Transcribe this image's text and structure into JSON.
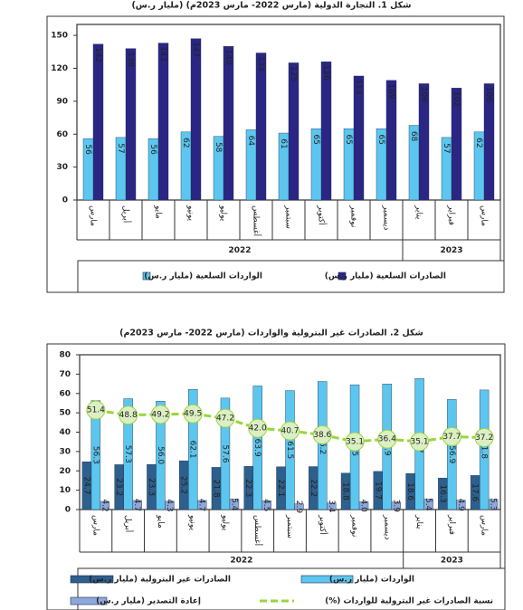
{
  "chart_data": [
    {
      "type": "bar",
      "title": "شكل 1. التجارة الدولية (مارس 2022- مارس 2023م) (مليار ر.س)",
      "categories": [
        "مارس",
        "أبريل",
        "مايو",
        "يونيو",
        "يوليو",
        "أغسطس",
        "سبتمبر",
        "أكتوبر",
        "نوفمبر",
        "ديسمبر",
        "يناير",
        "فبراير",
        "مارس"
      ],
      "years": [
        "2022",
        "2022",
        "2022",
        "2022",
        "2022",
        "2022",
        "2022",
        "2022",
        "2022",
        "2022",
        "2023",
        "2023",
        "2023"
      ],
      "series": [
        {
          "name": "الصادرات السلعية (مليار ر.س)",
          "color": "#2b2684",
          "values": [
            142,
            138,
            143,
            147,
            140,
            134,
            125,
            126,
            113,
            109,
            106,
            102,
            106
          ]
        },
        {
          "name": "الواردات السلعية (مليار ر.س)",
          "color": "#5cc6ee",
          "values": [
            56,
            57,
            56,
            62,
            58,
            64,
            61,
            65,
            65,
            65,
            68,
            57,
            62
          ]
        }
      ],
      "ylim": [
        0,
        160
      ],
      "yticks": [
        0,
        30,
        60,
        90,
        120,
        150
      ]
    },
    {
      "type": "bar",
      "title": "شكل 2. الصادرات غير البترولية والواردات (مارس 2022- مارس 2023م)",
      "categories": [
        "مارس",
        "أبريل",
        "مايو",
        "يونيو",
        "يوليو",
        "أغسطس",
        "سبتمبر",
        "أكتوبر",
        "نوفمبر",
        "ديسمبر",
        "يناير",
        "فبراير",
        "مارس"
      ],
      "years": [
        "2022",
        "2022",
        "2022",
        "2022",
        "2022",
        "2022",
        "2022",
        "2022",
        "2022",
        "2022",
        "2023",
        "2023",
        "2023"
      ],
      "series": [
        {
          "name": "الواردات (مليار ر.س)",
          "color": "#5cc6ee",
          "values": [
            56.3,
            57.3,
            56.0,
            62.1,
            57.6,
            63.9,
            61.5,
            66.2,
            64.5,
            64.9,
            67.7,
            56.9,
            61.8
          ],
          "value_labels": [
            "56.3",
            "57.3",
            "56.0",
            "62.1",
            "57.6",
            "63.9",
            "61.5",
            "66.2",
            "64.5",
            "64.9",
            "67.7",
            "56.9",
            "61.8"
          ]
        },
        {
          "name": "الصادرات غير البترولية (مليار ر.س)",
          "color": "#2f5f8c",
          "values": [
            24.7,
            23.2,
            23.3,
            25.2,
            21.8,
            22.3,
            22.1,
            22.2,
            18.8,
            19.7,
            18.6,
            16.3,
            17.6
          ]
        },
        {
          "name": "نسبة الصادرات غير البترولية للواردات (%)",
          "type": "line",
          "color": "#9ad53b",
          "values": [
            51.4,
            48.8,
            49.2,
            49.5,
            47.2,
            42.0,
            40.7,
            38.6,
            35.1,
            36.4,
            35.1,
            37.7,
            37.2
          ],
          "value_labels": [
            "51.4",
            "48.8",
            "49.2",
            "49.5",
            "47.2",
            "42.0",
            "40.7",
            "38.6",
            "35.1",
            "36.4",
            "35.1",
            "37.7",
            "37.2"
          ]
        },
        {
          "name": "إعادة التصدير (مليار ر.س)",
          "color": "#8ea8dc",
          "values": [
            4.2,
            4.7,
            4.3,
            4.7,
            5.4,
            4.5,
            2.9,
            3.4,
            4.0,
            3.9,
            5.4,
            4.9,
            5.3
          ],
          "value_labels": [
            "4.2",
            "4.7",
            "4.3",
            "4.7",
            "5.4",
            "4.5",
            "2.9",
            "3.4",
            "4.0",
            "3.9",
            "5.4",
            "4.9",
            "5.3"
          ]
        }
      ],
      "ylim": [
        0,
        80
      ],
      "yticks": [
        0,
        10,
        20,
        30,
        40,
        50,
        60,
        70,
        80
      ]
    }
  ]
}
